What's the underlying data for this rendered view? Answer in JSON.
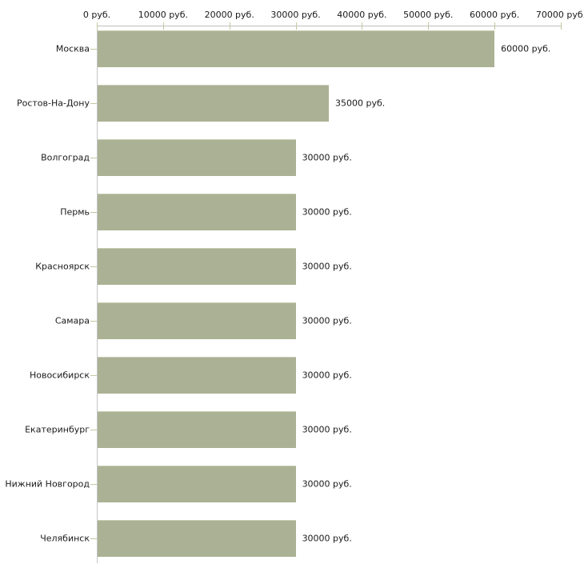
{
  "chart_data": {
    "type": "bar",
    "orientation": "horizontal",
    "title": "",
    "xlabel": "",
    "ylabel": "",
    "xlim": [
      0,
      70000
    ],
    "grid": false,
    "legend": false,
    "categories": [
      "Москва",
      "Ростов-На-Дону",
      "Волгоград",
      "Пермь",
      "Красноярск",
      "Самара",
      "Новосибирск",
      "Екатеринбург",
      "Нижний Новгород",
      "Челябинск"
    ],
    "values": [
      60000,
      35000,
      30000,
      30000,
      30000,
      30000,
      30000,
      30000,
      30000,
      30000
    ],
    "value_labels": [
      "60000 руб.",
      "35000 руб.",
      "30000 руб.",
      "30000 руб.",
      "30000 руб.",
      "30000 руб.",
      "30000 руб.",
      "30000 руб.",
      "30000 руб.",
      "30000 руб."
    ],
    "x_ticks": [
      {
        "value": 0,
        "label": "0 руб."
      },
      {
        "value": 10000,
        "label": "10000 руб."
      },
      {
        "value": 20000,
        "label": "20000 руб."
      },
      {
        "value": 30000,
        "label": "30000 руб."
      },
      {
        "value": 40000,
        "label": "40000 руб."
      },
      {
        "value": 50000,
        "label": "50000 руб."
      },
      {
        "value": 60000,
        "label": "60000 руб."
      },
      {
        "value": 70000,
        "label": "70000 руб."
      }
    ],
    "colors": {
      "bar_fill": "#abb194",
      "bar_top_edge": "#c9cdb3",
      "axis_line": "#bdbdbd",
      "tick_mark": "#c6c6a0",
      "text": "#1a1a1a",
      "background": "#ffffff"
    }
  }
}
